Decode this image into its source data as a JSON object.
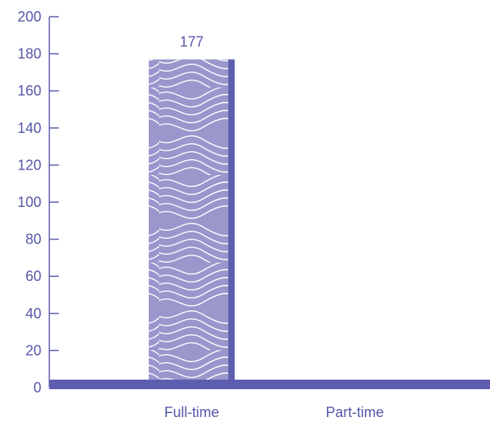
{
  "chart_data": {
    "type": "bar",
    "categories": [
      "Full-time",
      "Part-time"
    ],
    "series": [
      {
        "values": [
          177,
          0
        ]
      }
    ],
    "data_labels": [
      "177",
      ""
    ],
    "ylim": [
      0,
      200
    ],
    "yticks": [
      0,
      20,
      40,
      60,
      80,
      100,
      120,
      140,
      160,
      180,
      200
    ],
    "grid": false,
    "title": "",
    "xlabel": "",
    "ylabel": ""
  },
  "colors": {
    "bar_fill": "#9a97cc",
    "bar_edge": "#5e5db0",
    "axis": "#5e5db0",
    "text": "#5557a8",
    "pattern_line": "#ffffff"
  }
}
